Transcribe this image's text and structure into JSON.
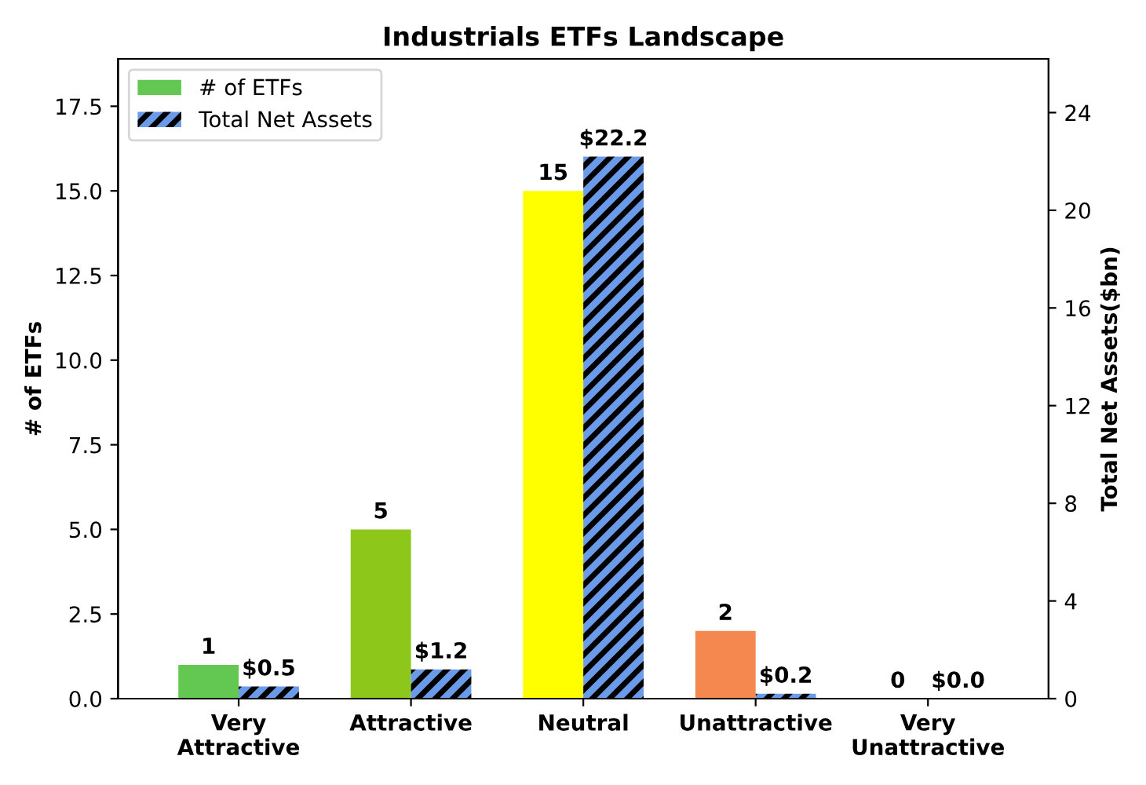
{
  "chart_data": {
    "type": "bar",
    "title": "Industrials ETFs Landscape",
    "categories": [
      "Very\nAttractive",
      "Attractive",
      "Neutral",
      "Unattractive",
      "Very\nUnattractive"
    ],
    "ylabel": "# of ETFs",
    "y2label": "Total Net Assets($bn)",
    "series": [
      {
        "name": "# of ETFs",
        "colors": [
          "#62c851",
          "#8dc71a",
          "#ffff00",
          "#f5884f",
          "#d0d0d0"
        ],
        "values": [
          1,
          5,
          15,
          2,
          0
        ],
        "value_labels": [
          "1",
          "5",
          "15",
          "2",
          "0"
        ]
      },
      {
        "name": "Total Net Assets",
        "color": "#6a9ae8",
        "axis": "y2",
        "values": [
          0.5,
          1.2,
          22.2,
          0.2,
          0.0
        ],
        "value_labels": [
          "$0.5",
          "$1.2",
          "$22.2",
          "$0.2",
          "$0.0"
        ]
      }
    ],
    "ylim": [
      0,
      18.9
    ],
    "yticks": [
      {
        "value": 0,
        "label": "0.0"
      },
      {
        "value": 2.5,
        "label": "2.5"
      },
      {
        "value": 5,
        "label": "5.0"
      },
      {
        "value": 7.5,
        "label": "7.5"
      },
      {
        "value": 10,
        "label": "10.0"
      },
      {
        "value": 12.5,
        "label": "12.5"
      },
      {
        "value": 15,
        "label": "15.0"
      },
      {
        "value": 17.5,
        "label": "17.5"
      }
    ],
    "y2lim": [
      0,
      26.2
    ],
    "y2ticks": [
      0,
      4,
      8,
      12,
      16,
      20,
      24
    ],
    "legend": "top left",
    "grid": false
  }
}
